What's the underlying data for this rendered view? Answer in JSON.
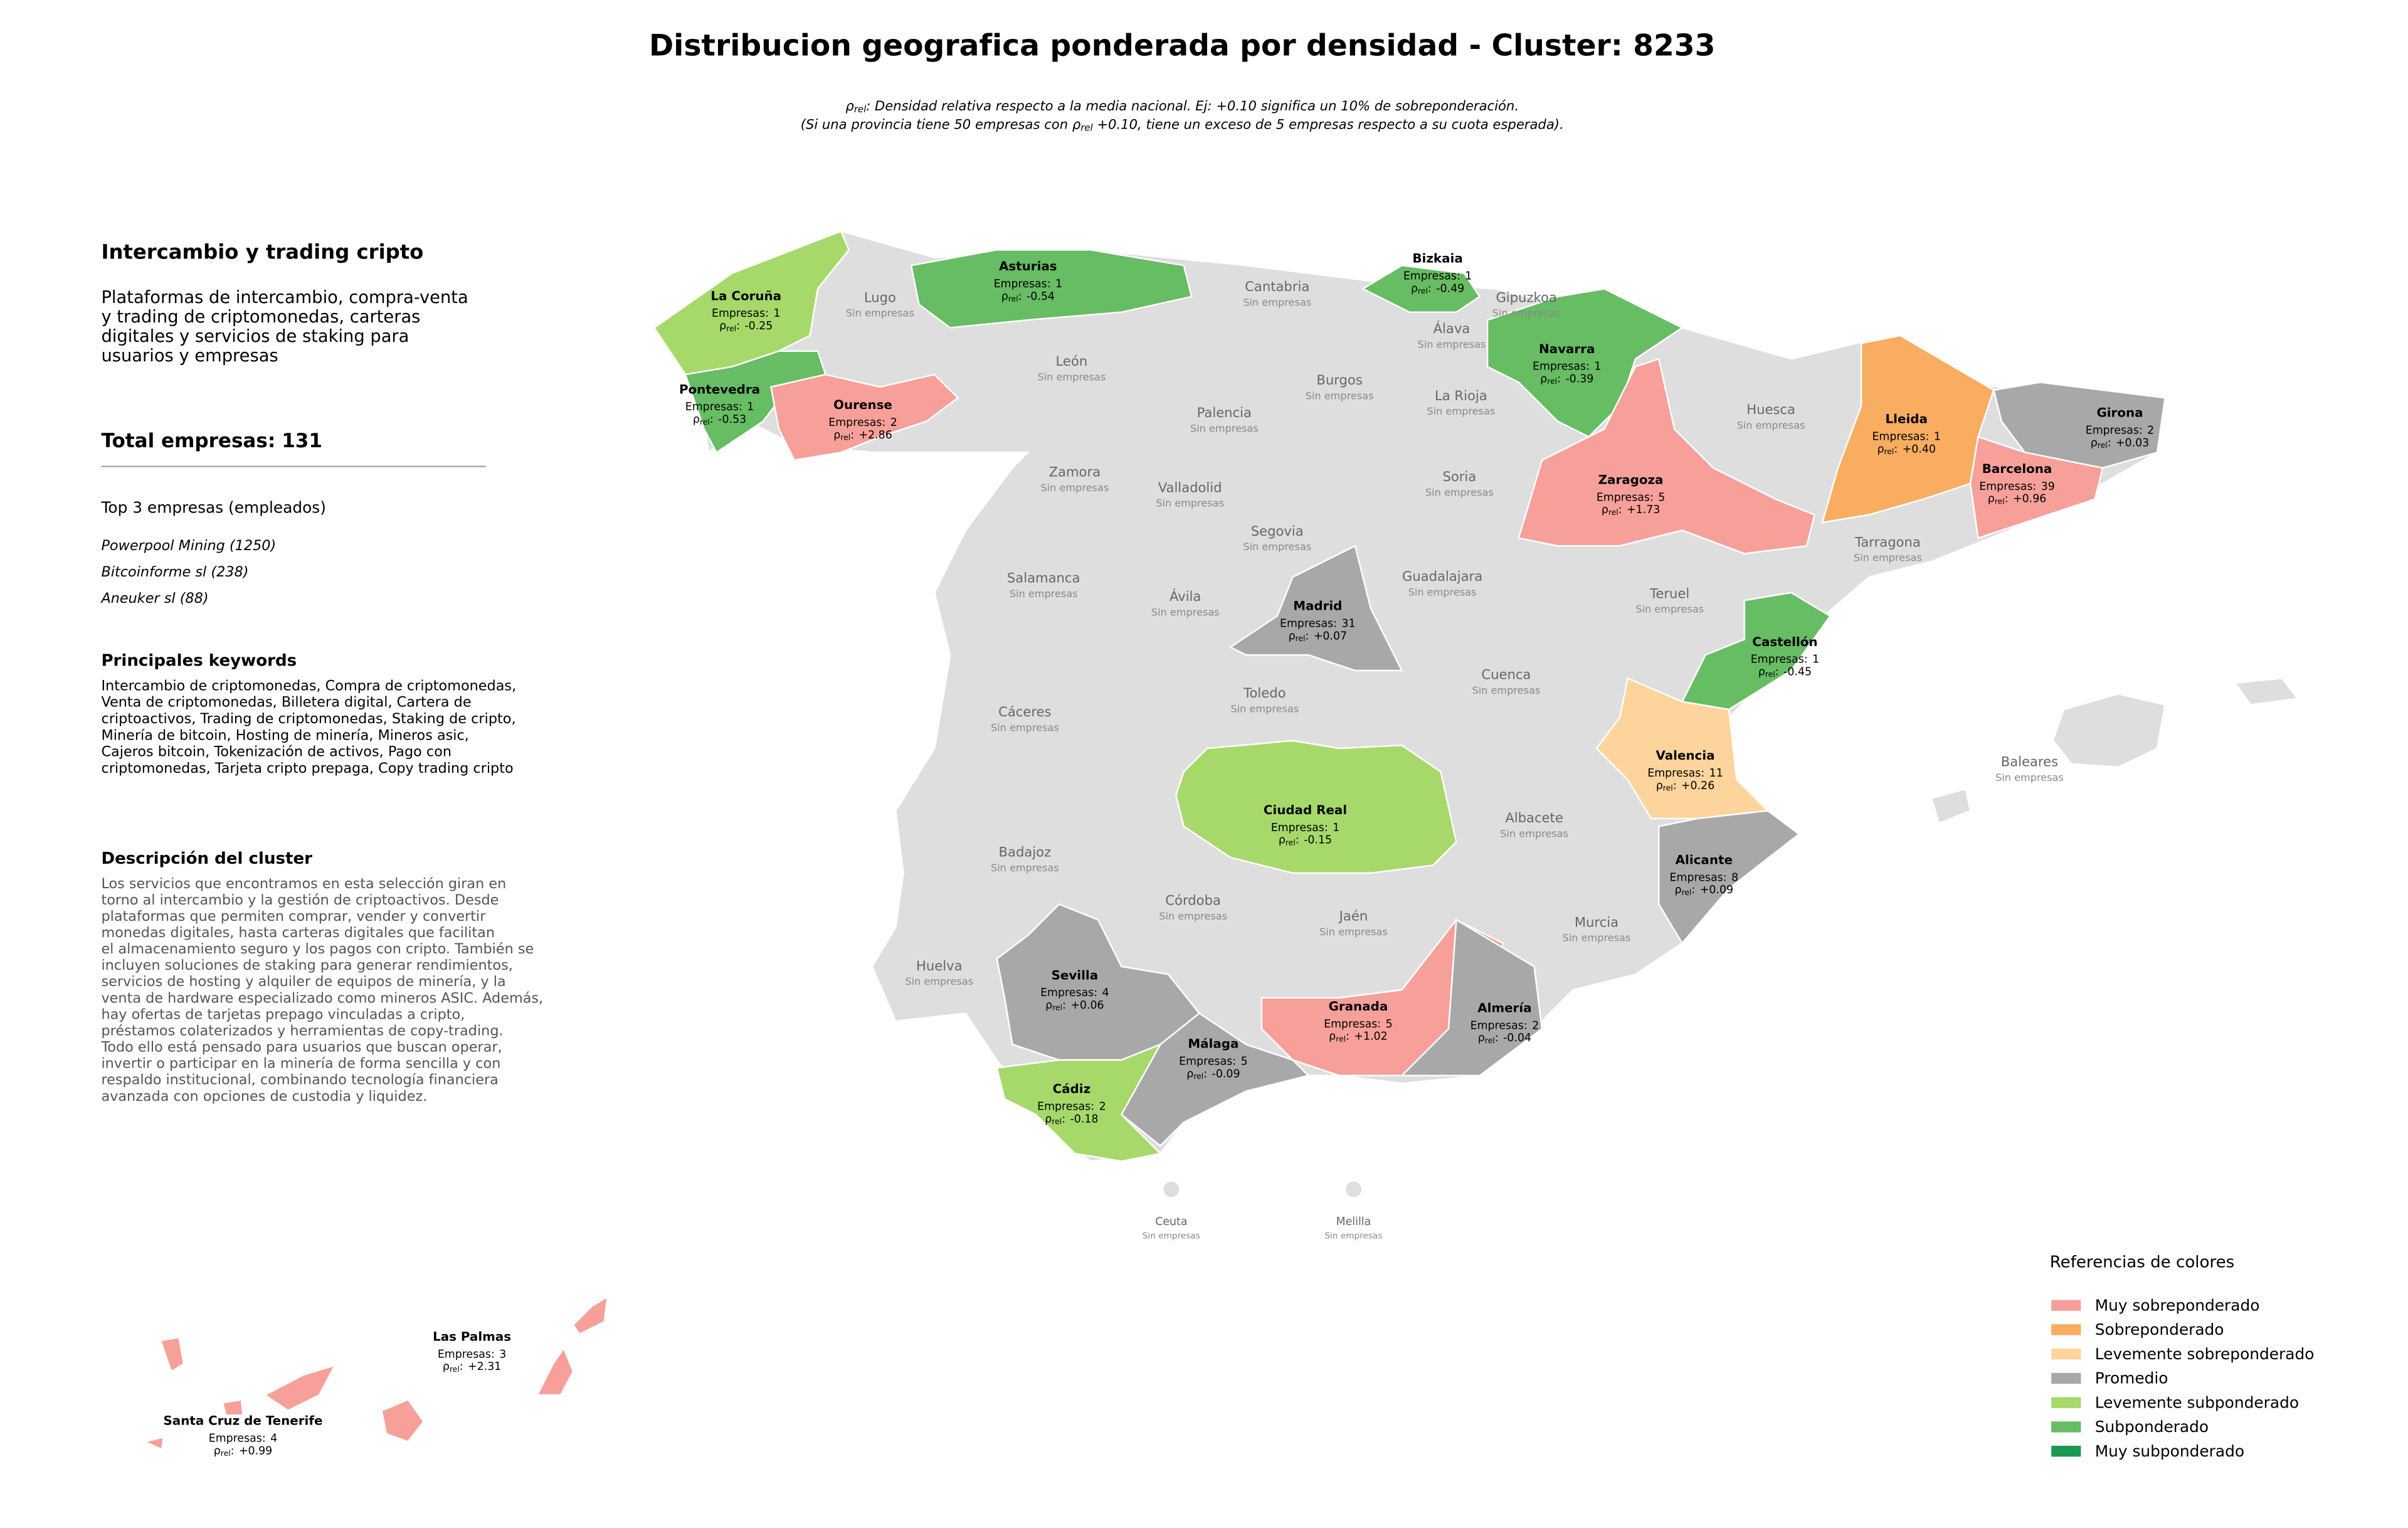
{
  "header": {
    "title": "Distribucion geografica ponderada por densidad - Cluster: 8233",
    "subtitle_line1": {
      "symbol": "ρ",
      "subscript": "rel",
      "text": ": Densidad relativa respecto a la media nacional. Ej: +0.10 significa un 10% de sobreponderación."
    },
    "subtitle_line2": {
      "before": "(Si una provincia tiene 50 empresas con ",
      "symbol": "ρ",
      "subscript": "rel",
      "after": " +0.10, tiene un exceso de 5 empresas respecto a su cuota esperada)."
    }
  },
  "panel": {
    "title": "Intercambio y trading cripto",
    "description_lines": [
      "Plataformas de intercambio, compra-venta",
      "y trading de criptomonedas, carteras",
      "digitales y servicios de staking para",
      "usuarios y empresas"
    ],
    "total_label": "Total empresas:",
    "total": 131,
    "top_heading": "Top 3 empresas (empleados)",
    "top_companies": [
      "Powerpool Mining (1250)",
      "Bitcoinforme sl (238)",
      "Aneuker sl (88)"
    ],
    "keywords_heading": "Principales keywords",
    "keywords_lines": [
      "Intercambio de criptomonedas, Compra de criptomonedas,",
      "Venta de criptomonedas, Billetera digital, Cartera de",
      "criptoactivos, Trading de criptomonedas, Staking de cripto,",
      "Minería de bitcoin, Hosting de minería, Mineros asic,",
      "Cajeros bitcoin, Tokenización de activos, Pago con",
      "criptomonedas, Tarjeta cripto prepaga, Copy trading cripto"
    ],
    "cluster_heading": "Descripción del cluster",
    "cluster_lines": [
      "Los servicios que encontramos en esta selección giran en",
      "torno al intercambio y la gestión de criptoactivos. Desde",
      "plataformas que permiten comprar, vender y convertir",
      "monedas digitales, hasta carteras digitales que facilitan",
      "el almacenamiento seguro y los pagos con cripto. También se",
      "incluyen soluciones de staking para generar rendimientos,",
      "servicios de hosting y alquiler de equipos de minería, y la",
      "venta de hardware especializado como mineros ASIC. Además,",
      "hay ofertas de tarjetas prepago vinculadas a cripto,",
      "préstamos colaterizados y herramientas de copy-trading.",
      "Todo ello está pensado para usuarios que buscan operar,",
      "invertir o participar en la minería de forma sencilla y con",
      "respaldo institucional, combinando tecnología financiera",
      "avanzada con opciones de custodia y liquidez."
    ]
  },
  "map": {
    "companies_label": "Empresas:",
    "no_companies_label": "Sin empresas",
    "rho_symbol": "ρ",
    "rho_subscript": "rel",
    "rho_suffix": ":",
    "empty_color": "#dedede",
    "provinces": [
      {
        "name": "La Coruña",
        "companies": 1,
        "rho": "-0.25",
        "color": "#a6d96a"
      },
      {
        "name": "Pontevedra",
        "companies": 1,
        "rho": "-0.53",
        "color": "#66bd63"
      },
      {
        "name": "Ourense",
        "companies": 2,
        "rho": "+2.86",
        "color": "#f7a099"
      },
      {
        "name": "Asturias",
        "companies": 1,
        "rho": "-0.54",
        "color": "#66bd63"
      },
      {
        "name": "Bizkaia",
        "companies": 1,
        "rho": "-0.49",
        "color": "#66bd63"
      },
      {
        "name": "Navarra",
        "companies": 1,
        "rho": "-0.39",
        "color": "#66bd63"
      },
      {
        "name": "Zaragoza",
        "companies": 5,
        "rho": "+1.73",
        "color": "#f7a099"
      },
      {
        "name": "Lleida",
        "companies": 1,
        "rho": "+0.40",
        "color": "#f9ad60"
      },
      {
        "name": "Girona",
        "companies": 2,
        "rho": "+0.03",
        "color": "#a8a8a8"
      },
      {
        "name": "Barcelona",
        "companies": 39,
        "rho": "+0.96",
        "color": "#f7a099"
      },
      {
        "name": "Madrid",
        "companies": 31,
        "rho": "+0.07",
        "color": "#a8a8a8"
      },
      {
        "name": "Castellón",
        "companies": 1,
        "rho": "-0.45",
        "color": "#66bd63"
      },
      {
        "name": "Valencia",
        "companies": 11,
        "rho": "+0.26",
        "color": "#fdd49b"
      },
      {
        "name": "Alicante",
        "companies": 8,
        "rho": "+0.09",
        "color": "#a8a8a8"
      },
      {
        "name": "Ciudad Real",
        "companies": 1,
        "rho": "-0.15",
        "color": "#a6d96a"
      },
      {
        "name": "Sevilla",
        "companies": 4,
        "rho": "+0.06",
        "color": "#a8a8a8"
      },
      {
        "name": "Málaga",
        "companies": 5,
        "rho": "-0.09",
        "color": "#a8a8a8"
      },
      {
        "name": "Granada",
        "companies": 5,
        "rho": "+1.02",
        "color": "#f7a099"
      },
      {
        "name": "Almería",
        "companies": 2,
        "rho": "-0.04",
        "color": "#a8a8a8"
      },
      {
        "name": "Cádiz",
        "companies": 2,
        "rho": "-0.18",
        "color": "#a6d96a"
      },
      {
        "name": "Las Palmas",
        "companies": 3,
        "rho": "+2.31",
        "color": "#f7a099"
      },
      {
        "name": "Santa Cruz de Tenerife",
        "companies": 4,
        "rho": "+0.99",
        "color": "#f7a099"
      }
    ],
    "empty_provinces": [
      "Lugo",
      "Cantabria",
      "Gipuzkoa",
      "Álava",
      "León",
      "Burgos",
      "La Rioja",
      "Palencia",
      "Huesca",
      "Zamora",
      "Valladolid",
      "Soria",
      "Segovia",
      "Tarragona",
      "Salamanca",
      "Ávila",
      "Guadalajara",
      "Teruel",
      "Cuenca",
      "Toledo",
      "Cáceres",
      "Baleares",
      "Badajoz",
      "Albacete",
      "Córdoba",
      "Jaén",
      "Huelva",
      "Murcia",
      "Ceuta",
      "Melilla"
    ]
  },
  "legend": {
    "title": "Referencias de colores",
    "items": [
      {
        "label": "Muy sobreponderado",
        "color": "#f7a099"
      },
      {
        "label": "Sobreponderado",
        "color": "#f9ad60"
      },
      {
        "label": "Levemente sobreponderado",
        "color": "#fdd49b"
      },
      {
        "label": "Promedio",
        "color": "#a8a8a8"
      },
      {
        "label": "Levemente subponderado",
        "color": "#a6d96a"
      },
      {
        "label": "Subponderado",
        "color": "#66bd63"
      },
      {
        "label": "Muy subponderado",
        "color": "#1a9850"
      }
    ]
  }
}
